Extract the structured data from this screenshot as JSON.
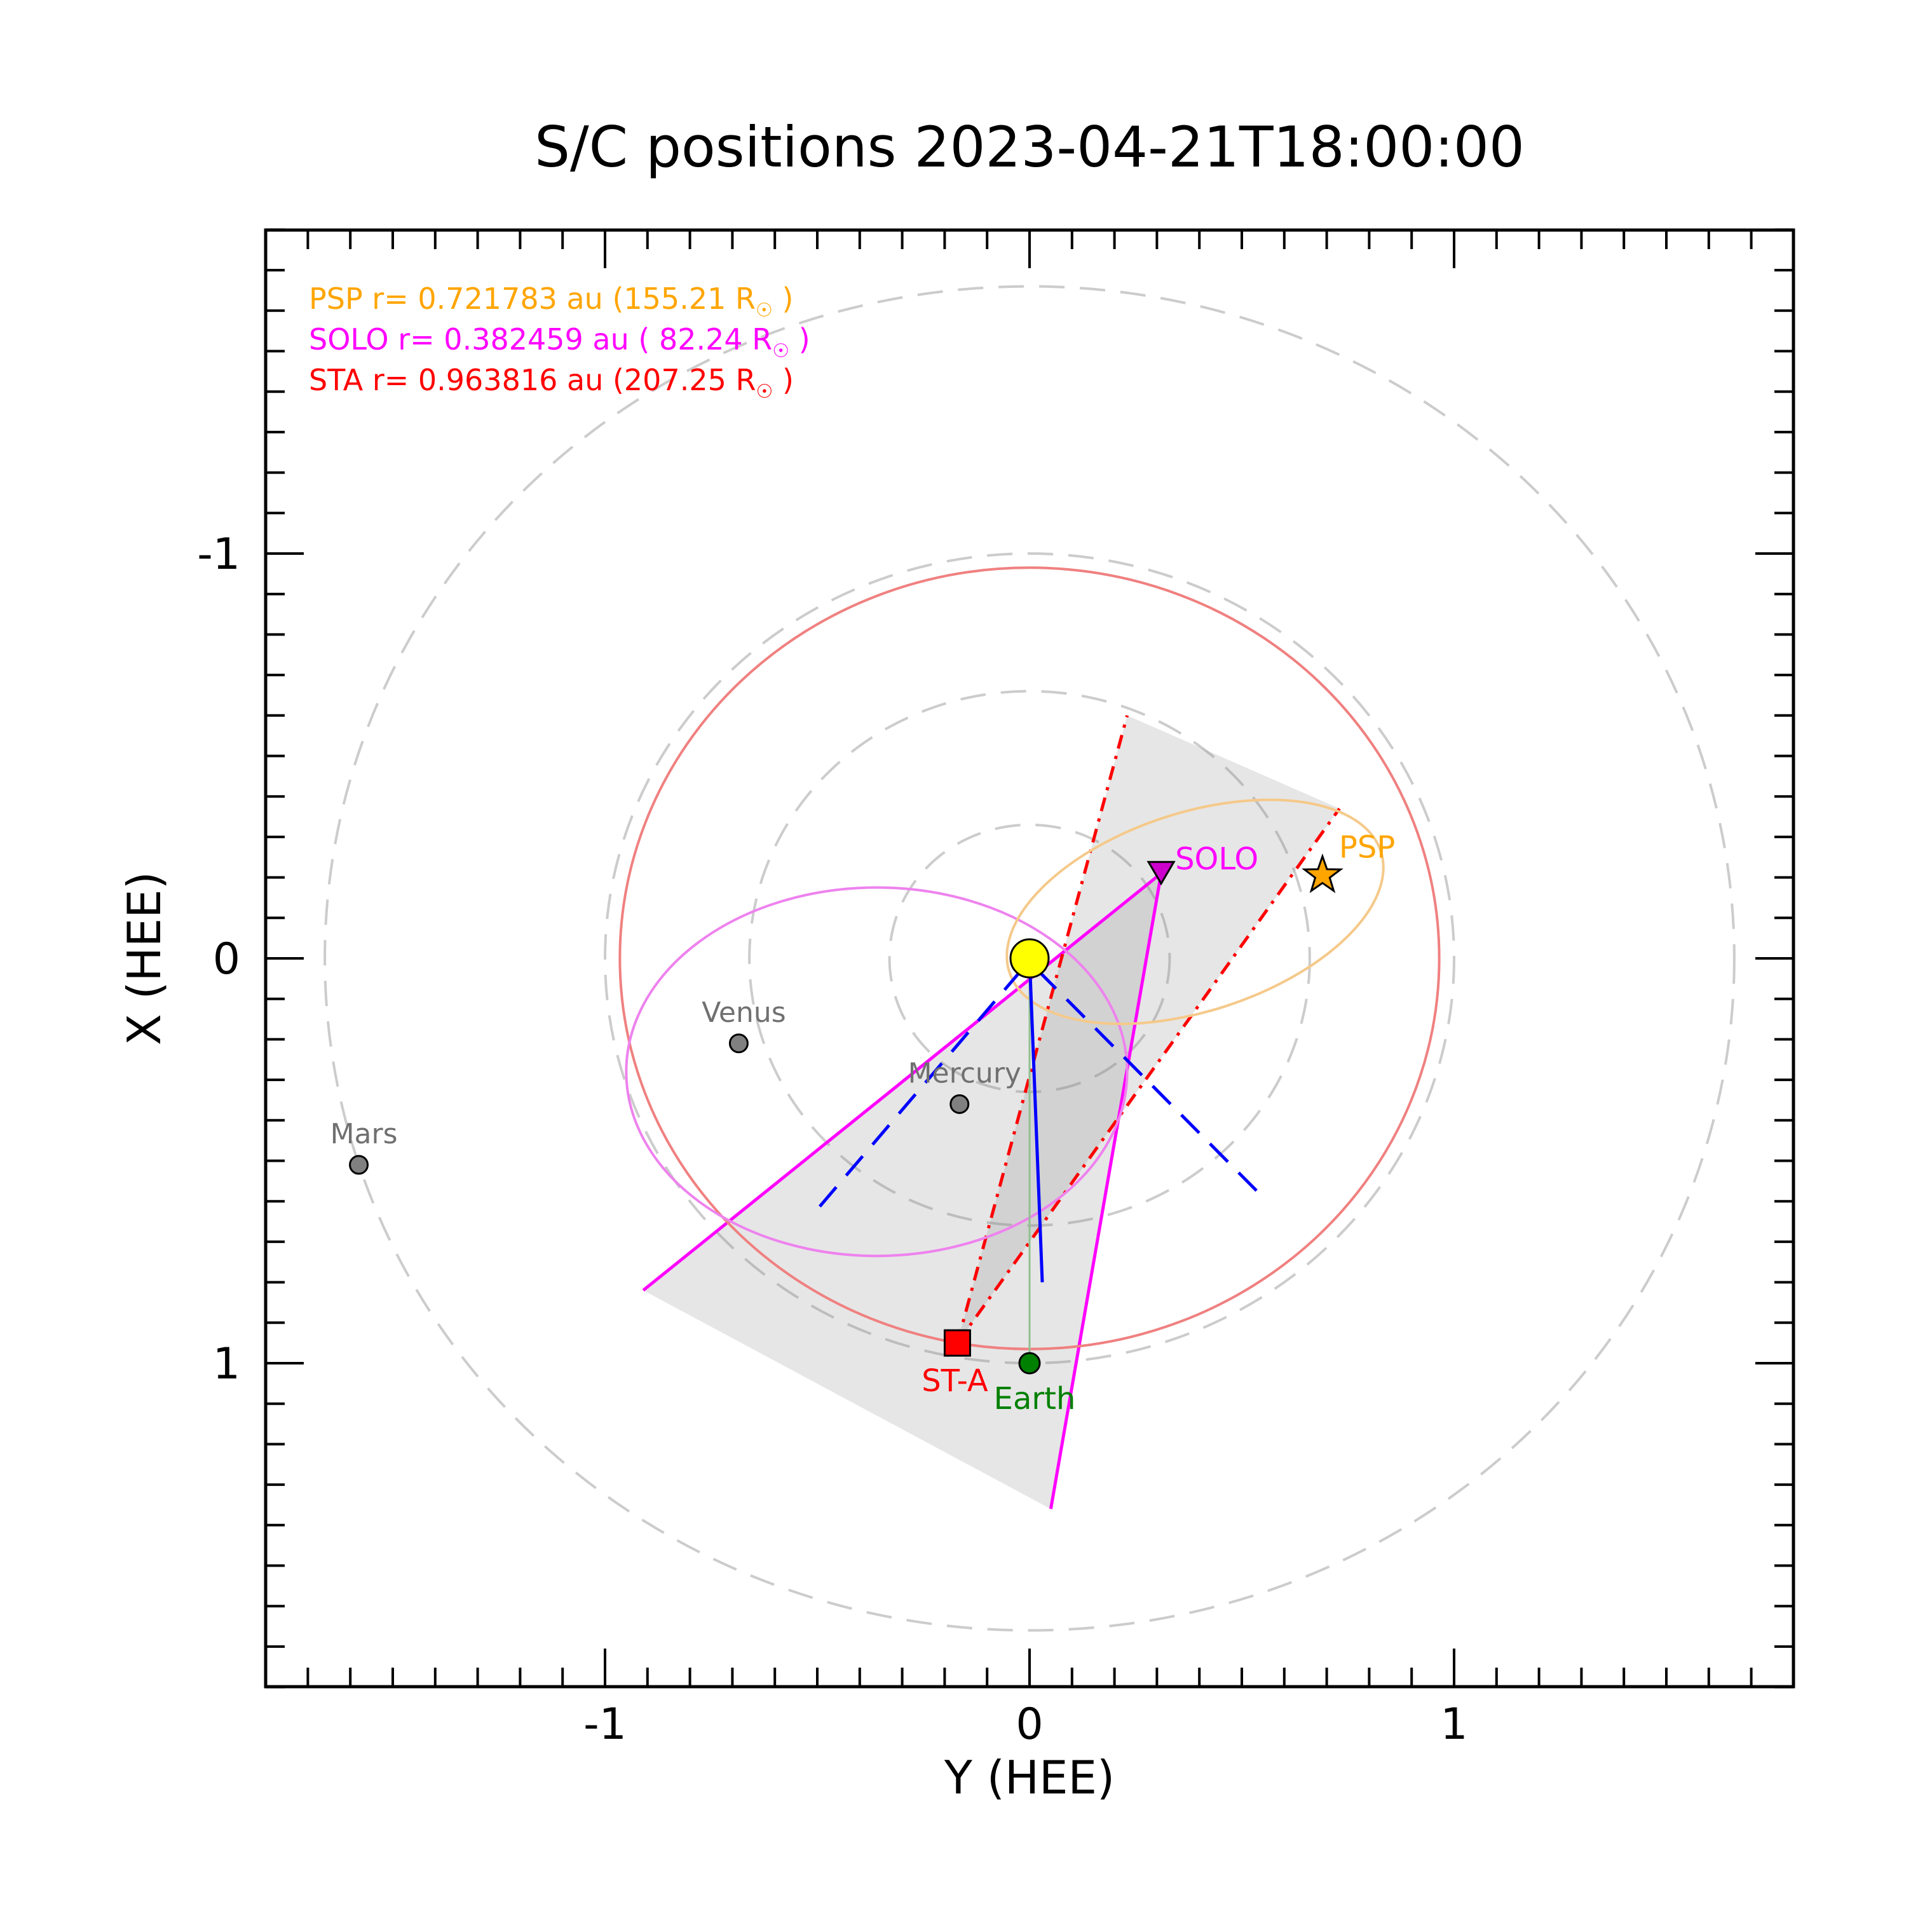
{
  "chart_data": {
    "type": "scatter",
    "title": "S/C positions 2023-04-21T18:00:00",
    "xlabel": "Y (HEE)",
    "ylabel": "X (HEE)",
    "xlim": [
      -1.8,
      1.8
    ],
    "ylim": [
      1.8,
      -1.8
    ],
    "xticks": [
      {
        "value": -1,
        "label": "-1"
      },
      {
        "value": 0,
        "label": "0"
      },
      {
        "value": 1,
        "label": "1"
      }
    ],
    "yticks": [
      {
        "value": -1,
        "label": "-1"
      },
      {
        "value": 0,
        "label": "0"
      },
      {
        "value": 1,
        "label": "1"
      }
    ],
    "minor_tick_step": 0.1,
    "grid": false,
    "legend_placement": "top-left",
    "reference_circles_au": [
      0.33,
      0.66,
      1.0,
      1.66
    ],
    "legend": [
      {
        "text": "PSP r= 0.721783 au (155.21 R",
        "suffix": " )",
        "color": "#ffa500"
      },
      {
        "text": "SOLO r= 0.382459 au ( 82.24 R",
        "suffix": " )",
        "color": "#ff00ff"
      },
      {
        "text": "STA r= 0.963816 au (207.25 R",
        "suffix": " )",
        "color": "#ff0000"
      }
    ],
    "sun": {
      "y": 0.0,
      "x": 0.0,
      "color": "#ffff00"
    },
    "spacecraft": [
      {
        "name": "PSP",
        "label": "PSP",
        "y": 0.69,
        "x": -0.205,
        "marker": "star",
        "color": "#ffa500"
      },
      {
        "name": "SOLO",
        "label": "SOLO",
        "y": 0.31,
        "x": -0.21,
        "marker": "triangle-down",
        "color": "#cc00cc"
      },
      {
        "name": "STA",
        "label": "ST-A",
        "y": -0.17,
        "x": 0.95,
        "marker": "square",
        "color": "#ff0000"
      }
    ],
    "earth": {
      "label": "Earth",
      "y": 0.0,
      "x": 1.0,
      "color": "#008000"
    },
    "planets": [
      {
        "label": "Venus",
        "y": -0.685,
        "x": 0.21,
        "color": "#808080"
      },
      {
        "label": "Mercury",
        "y": -0.165,
        "x": 0.36,
        "color": "#808080"
      },
      {
        "label": "Mars",
        "y": -1.58,
        "x": 0.51,
        "color": "#808080"
      }
    ],
    "orbits": [
      {
        "name": "STA orbit",
        "color": "#f08080",
        "cy": 0.0,
        "cx": 0.0,
        "ry": 0.965,
        "rx": 0.965
      },
      {
        "name": "SOLO orbit",
        "color": "#ee82ee",
        "cy": -0.36,
        "cx": 0.28,
        "ry": 0.59,
        "rx": 0.455
      },
      {
        "name": "PSP orbit",
        "color": "#f5c98a",
        "cy": 0.39,
        "cx": -0.115,
        "ry": 0.46,
        "rx": 0.245,
        "rotation_deg": -18
      }
    ],
    "fov_wedges": [
      {
        "name": "SOLO FOV",
        "color": "#ff00ff",
        "apex": [
          0.31,
          -0.21
        ],
        "edges": [
          [
            -0.91,
            0.82
          ],
          [
            0.05,
            1.36
          ]
        ]
      },
      {
        "name": "STA FOV",
        "color": "#ff0000",
        "apex": [
          -0.17,
          0.95
        ],
        "edges": [
          [
            0.23,
            -0.6
          ],
          [
            0.73,
            -0.37
          ]
        ]
      }
    ],
    "blue_lines": [
      {
        "name": "Sun-Earth line",
        "points": [
          [
            0.0,
            0.0
          ],
          [
            0.03,
            0.8
          ]
        ]
      },
      {
        "name": "dashed left",
        "points": [
          [
            -0.02,
            0.03
          ],
          [
            -0.5,
            0.62
          ]
        ]
      },
      {
        "name": "dashed right",
        "points": [
          [
            0.02,
            0.03
          ],
          [
            0.55,
            0.59
          ]
        ]
      }
    ],
    "earth_line": {
      "points": [
        [
          0.0,
          0.0
        ],
        [
          0.0,
          1.0
        ]
      ],
      "color": "#90c090"
    }
  }
}
